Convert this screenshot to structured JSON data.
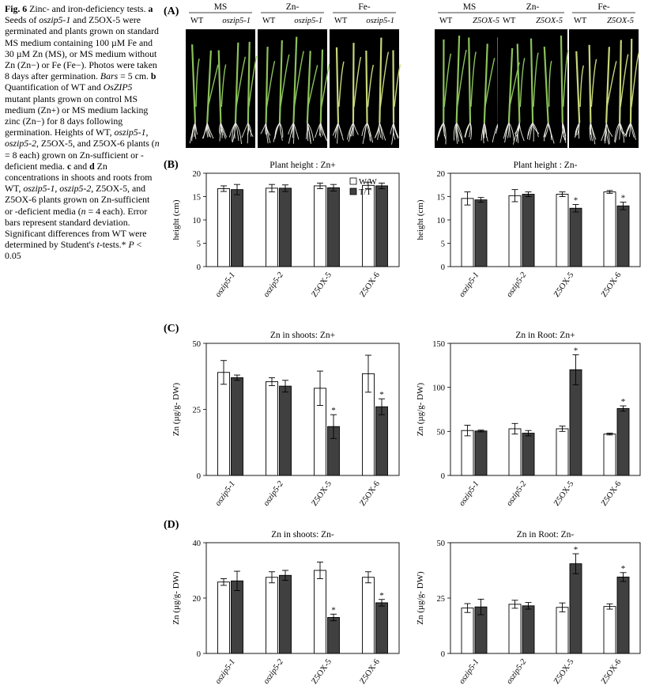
{
  "caption": {
    "fig_label": "Fig. 6",
    "p1": " Zinc- and iron-deficiency tests. ",
    "a": "a",
    "p2": " Seeds of ",
    "g1": "oszip5-1",
    "p3": " and Z5OX-5 were germinated and plants grown on standard MS medium containing 100 µM Fe and 30 µM Zn (MS), or MS medium without Zn (Zn−) or Fe (Fe−). Photos were taken 8 days after germination. ",
    "bars": "Bars",
    "p4": " = 5 cm. ",
    "b": "b",
    "p5": " Quantification of WT and ",
    "g2": "OsZIP5",
    "p6": " mutant plants grown on control MS medium (Zn+) or MS medium lacking zinc (Zn−) for 8 days following germination. Heights of WT, ",
    "g3": "oszip5-1",
    "p7": ", ",
    "g4": "oszip5-2",
    "p8": ", Z5OX-5, and Z5OX-6 plants (",
    "n1": "n",
    "p9": " = 8 each) grown on Zn-sufficient or -deficient media. ",
    "c": "c",
    "p10": " and ",
    "d": "d",
    "p11": " Zn concentrations in shoots and roots from WT, ",
    "g5": "oszip5-1",
    "p12": ", ",
    "g6": "oszip5-2",
    "p13": ", Z5OX-5, and Z5OX-6 plants grown on Zn-sufficient or -deficient media (",
    "n2": "n",
    "p14": " = 4 each). Error bars represent standard deviation. Significant differences from WT were determined by Student's ",
    "t": "t",
    "p15": "-tests.* ",
    "P": "P",
    "p16": " < 0.05"
  },
  "panel_a": {
    "label": "(A)",
    "groups": [
      {
        "medium": "MS",
        "lines": [
          "WT",
          "oszip5-1"
        ]
      },
      {
        "medium": "Zn-",
        "lines": [
          "WT",
          "oszip5-1"
        ]
      },
      {
        "medium": "Fe-",
        "lines": [
          "WT",
          "oszip5-1"
        ]
      },
      {
        "medium": "MS",
        "lines": [
          "WT",
          "Z5OX-5"
        ]
      },
      {
        "medium": "Zn-",
        "lines": [
          "WT",
          "Z5OX-5"
        ]
      },
      {
        "medium": "Fe-",
        "lines": [
          "WT",
          "Z5OX-5"
        ]
      }
    ],
    "colors": {
      "background": "#000000",
      "leaf": "#8cc25a",
      "leaf_yellow": "#c8d67a",
      "root": "#e8e8e0"
    }
  },
  "panel_labels": {
    "b": "(B)",
    "c": "(C)",
    "d": "(D)"
  },
  "colors": {
    "wt_bar": "#ffffff",
    "tt_bar": "#404040",
    "stroke": "#000000"
  },
  "chart_data": [
    {
      "type": "bar",
      "title": "Plant height : Zn+",
      "ylabel": "height (cm)",
      "ylim": [
        0,
        20
      ],
      "yticks": [
        0,
        5,
        10,
        15,
        20
      ],
      "categories": [
        "oszip5-1",
        "oszip5-2",
        "Z5OX-5",
        "Z5OX-6"
      ],
      "series": [
        {
          "name": "W/W",
          "values": [
            16.7,
            16.8,
            17.3,
            17.4
          ],
          "err": [
            0.6,
            0.8,
            0.6,
            0.7
          ]
        },
        {
          "name": "T/T",
          "values": [
            16.5,
            16.8,
            16.9,
            17.3
          ],
          "err": [
            1.1,
            0.7,
            0.7,
            0.6
          ]
        }
      ],
      "sig": [
        [
          false,
          false
        ],
        [
          false,
          false
        ],
        [
          false,
          false
        ],
        [
          false,
          false
        ]
      ],
      "legend": "top-right"
    },
    {
      "type": "bar",
      "title": "Plant height : Zn-",
      "ylabel": "height (cm)",
      "ylim": [
        0,
        20
      ],
      "yticks": [
        0,
        5,
        10,
        15,
        20
      ],
      "categories": [
        "oszip5-1",
        "oszip5-2",
        "Z5OX-5",
        "Z5OX-6"
      ],
      "series": [
        {
          "values": [
            14.6,
            15.2,
            15.5,
            16.0
          ],
          "err": [
            1.4,
            1.3,
            0.5,
            0.3
          ]
        },
        {
          "values": [
            14.3,
            15.5,
            12.5,
            13.0
          ],
          "err": [
            0.5,
            0.5,
            0.8,
            0.8
          ]
        }
      ],
      "sig": [
        [
          false,
          false
        ],
        [
          false,
          false
        ],
        [
          false,
          true
        ],
        [
          false,
          true
        ]
      ]
    },
    {
      "type": "bar",
      "title": "Zn in shoots: Zn+",
      "ylabel": "Zn (µg/g- DW)",
      "ylim": [
        0,
        50
      ],
      "yticks": [
        0,
        25,
        50
      ],
      "categories": [
        "oszip5-1",
        "oszip5-2",
        "Z5OX-5",
        "Z5OX-6"
      ],
      "series": [
        {
          "values": [
            39,
            35.5,
            33,
            38.5
          ],
          "err": [
            4.5,
            1.5,
            6.5,
            7
          ]
        },
        {
          "values": [
            37,
            33.8,
            18.5,
            26
          ],
          "err": [
            1,
            2.2,
            4.5,
            3
          ]
        }
      ],
      "sig": [
        [
          false,
          false
        ],
        [
          false,
          false
        ],
        [
          false,
          true
        ],
        [
          false,
          true
        ]
      ]
    },
    {
      "type": "bar",
      "title": "Zn in Root: Zn+",
      "ylabel": "Zn (µg/g- DW)",
      "ylim": [
        0,
        150
      ],
      "yticks": [
        0,
        50,
        100,
        150
      ],
      "categories": [
        "oszip5-1",
        "oszip5-2",
        "Z5OX-5",
        "Z5OX-6"
      ],
      "series": [
        {
          "values": [
            51,
            53,
            53,
            47
          ],
          "err": [
            6,
            6,
            3,
            1
          ]
        },
        {
          "values": [
            50.5,
            48,
            120,
            76
          ],
          "err": [
            1,
            3,
            17,
            3
          ]
        }
      ],
      "sig": [
        [
          false,
          false
        ],
        [
          false,
          false
        ],
        [
          false,
          true
        ],
        [
          false,
          true
        ]
      ]
    },
    {
      "type": "bar",
      "title": "Zn in shoots: Zn-",
      "ylabel": "Zn (µg/g- DW)",
      "ylim": [
        0,
        40
      ],
      "yticks": [
        0,
        20,
        40
      ],
      "categories": [
        "oszip5-1",
        "oszip5-2",
        "Z5OX-5",
        "Z5OX-6"
      ],
      "series": [
        {
          "values": [
            25.8,
            27.5,
            30,
            27.5
          ],
          "err": [
            1.2,
            2,
            3,
            2
          ]
        },
        {
          "values": [
            26.2,
            28.2,
            13,
            18.3
          ],
          "err": [
            3.5,
            1.8,
            1.2,
            1.2
          ]
        }
      ],
      "sig": [
        [
          false,
          false
        ],
        [
          false,
          false
        ],
        [
          false,
          true
        ],
        [
          false,
          true
        ]
      ]
    },
    {
      "type": "bar",
      "title": "Zn in Root: Zn-",
      "ylabel": "Zn (µg/g- DW)",
      "ylim": [
        0,
        50
      ],
      "yticks": [
        0,
        25,
        50
      ],
      "categories": [
        "oszip5-1",
        "oszip5-2",
        "Z5OX-5",
        "Z5OX-6"
      ],
      "series": [
        {
          "values": [
            20.5,
            22.2,
            20.8,
            21.2
          ],
          "err": [
            2,
            1.8,
            2,
            1.2
          ]
        },
        {
          "values": [
            21,
            21.5,
            40.5,
            34.5
          ],
          "err": [
            3.5,
            1.5,
            4.5,
            2
          ]
        }
      ],
      "sig": [
        [
          false,
          false
        ],
        [
          false,
          false
        ],
        [
          false,
          true
        ],
        [
          false,
          true
        ]
      ]
    }
  ]
}
